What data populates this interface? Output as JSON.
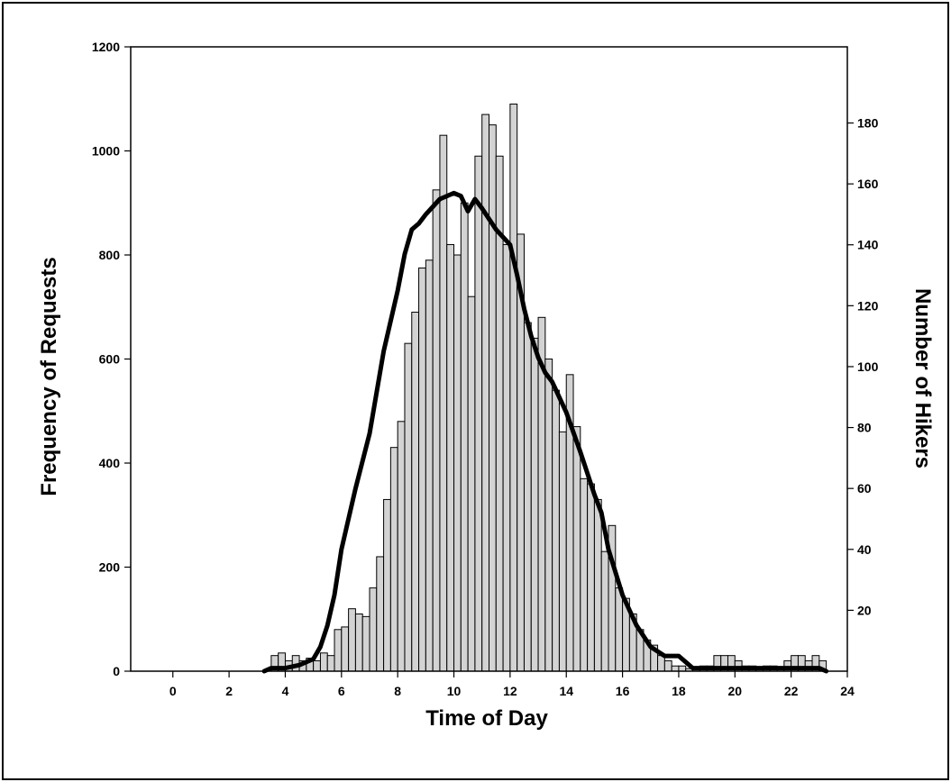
{
  "chart_data": {
    "type": "bar",
    "title": "",
    "xlabel": "Time of Day",
    "ylabel": "Frequency of Requests",
    "y2label": "Number of Hikers",
    "xlim": [
      -1.5,
      24
    ],
    "ylim": [
      0,
      1200
    ],
    "y2lim": [
      0,
      205
    ],
    "xticks": [
      0,
      2,
      4,
      6,
      8,
      10,
      12,
      14,
      16,
      18,
      20,
      22,
      24
    ],
    "yticks": [
      0,
      200,
      400,
      600,
      800,
      1000,
      1200
    ],
    "y2ticks": [
      20,
      40,
      60,
      80,
      100,
      120,
      140,
      160,
      180
    ],
    "bin_width": 0.25,
    "series": [
      {
        "kind": "histogram",
        "axis": "left",
        "bin_start": [
          3.5,
          3.75,
          4.0,
          4.25,
          4.5,
          4.75,
          5.0,
          5.25,
          5.5,
          5.75,
          6.0,
          6.25,
          6.5,
          6.75,
          7.0,
          7.25,
          7.5,
          7.75,
          8.0,
          8.25,
          8.5,
          8.75,
          9.0,
          9.25,
          9.5,
          9.75,
          10.0,
          10.25,
          10.5,
          10.75,
          11.0,
          11.25,
          11.5,
          11.75,
          12.0,
          12.25,
          12.5,
          12.75,
          13.0,
          13.25,
          13.5,
          13.75,
          14.0,
          14.25,
          14.5,
          14.75,
          15.0,
          15.25,
          15.5,
          15.75,
          16.0,
          16.25,
          16.5,
          16.75,
          17.0,
          17.25,
          17.5,
          17.75,
          18.0,
          18.25,
          18.5,
          18.75,
          19.0,
          19.25,
          19.5,
          19.75,
          20.0,
          20.25,
          20.5,
          20.75,
          21.0,
          21.25,
          21.5,
          21.75,
          22.0,
          22.25,
          22.5,
          22.75,
          23.0
        ],
        "values": [
          30,
          35,
          20,
          30,
          20,
          25,
          20,
          35,
          30,
          80,
          85,
          120,
          110,
          105,
          160,
          220,
          330,
          430,
          480,
          630,
          690,
          775,
          790,
          925,
          1030,
          820,
          800,
          900,
          720,
          990,
          1070,
          1050,
          990,
          820,
          1090,
          840,
          670,
          640,
          680,
          600,
          540,
          460,
          570,
          470,
          370,
          360,
          330,
          230,
          280,
          160,
          140,
          110,
          80,
          60,
          50,
          30,
          20,
          10,
          10,
          5,
          5,
          10,
          10,
          30,
          30,
          30,
          20,
          10,
          10,
          5,
          10,
          10,
          5,
          20,
          30,
          30,
          20,
          30,
          20
        ]
      },
      {
        "kind": "line",
        "axis": "right",
        "x": [
          3.25,
          3.5,
          4.0,
          4.5,
          5.0,
          5.25,
          5.5,
          5.75,
          6.0,
          6.25,
          6.5,
          7.0,
          7.5,
          8.0,
          8.25,
          8.5,
          8.75,
          9.0,
          9.5,
          10.0,
          10.25,
          10.5,
          10.75,
          11.0,
          11.5,
          12.0,
          12.25,
          12.5,
          12.75,
          13.0,
          13.25,
          13.5,
          14.0,
          14.5,
          15.0,
          15.25,
          15.5,
          16.0,
          16.5,
          17.0,
          17.5,
          18.0,
          18.5,
          19.0,
          19.5,
          20.0,
          20.5,
          21.0,
          22.0,
          23.0,
          23.25
        ],
        "y": [
          0,
          1,
          1,
          2,
          4,
          8,
          15,
          25,
          40,
          50,
          60,
          78,
          105,
          125,
          137,
          145,
          147,
          150,
          155,
          157,
          156,
          151,
          155,
          152,
          145,
          140,
          130,
          119,
          110,
          103,
          98,
          95,
          85,
          72,
          58,
          52,
          40,
          25,
          15,
          8,
          5,
          5,
          1,
          1,
          1,
          1,
          1,
          1,
          1,
          1,
          0
        ]
      }
    ]
  }
}
